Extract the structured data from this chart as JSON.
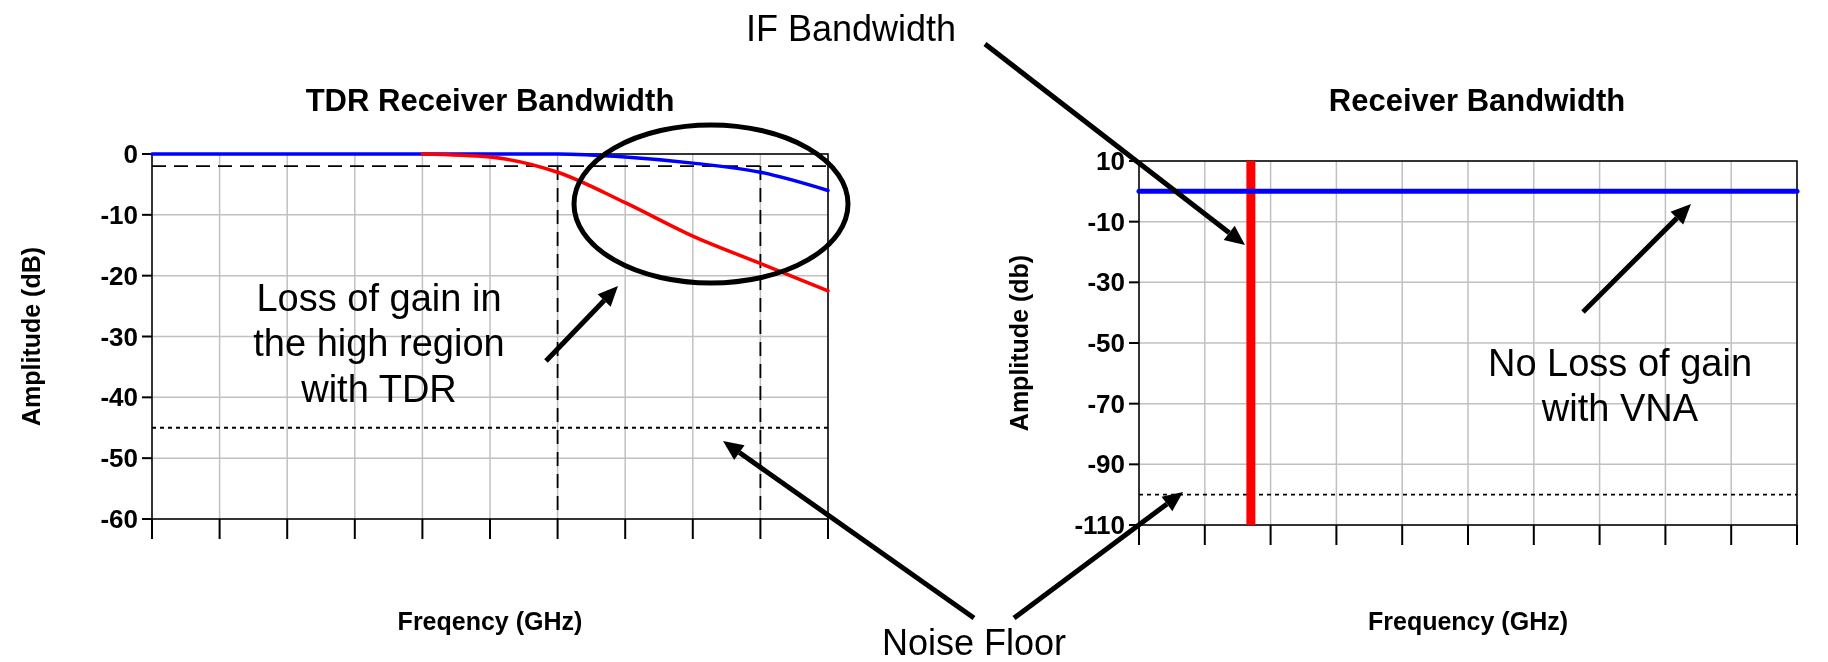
{
  "chart_data": [
    {
      "type": "line",
      "title": "TDR Receiver Bandwidth",
      "xlabel": "Freqency (GHz)",
      "ylabel": "Amplitude (dB)",
      "categories": [
        null,
        null,
        null,
        null,
        null,
        null,
        null,
        null,
        null,
        null,
        null
      ],
      "series": [
        {
          "color": "#0000ff",
          "values": [
            0,
            0,
            0,
            0,
            0,
            0,
            0,
            -0.5,
            -1.5,
            -3,
            -6
          ]
        },
        {
          "color": "#ff0000",
          "values": [
            null,
            null,
            null,
            null,
            0,
            -0.5,
            -3,
            -8,
            -13.5,
            -18,
            -22.5
          ]
        }
      ],
      "ylim": [
        -60,
        0
      ],
      "yticks": [
        0,
        -10,
        -20,
        -30,
        -40,
        -50,
        -60
      ],
      "grid": true,
      "tick_labels": "y",
      "ref_lines": [
        {
          "axis": "y",
          "value": -2,
          "line_style": "dashed",
          "color": "#000000"
        },
        {
          "axis": "y",
          "value": -45,
          "line_style": "dotted",
          "color": "#000000"
        }
      ],
      "annotations": [
        "Loss of gain in\nthe high region\nwith TDR",
        "Noise Floor"
      ]
    },
    {
      "type": "line",
      "title": "Receiver Bandwidth",
      "xlabel": "Frequency (GHz)",
      "ylabel": "Amplitude (db)",
      "categories": [
        null,
        null,
        null,
        null,
        null,
        null,
        null,
        null,
        null,
        null,
        null
      ],
      "series": [
        {
          "color": "#0000ff",
          "values": [
            0,
            0,
            0,
            0,
            0,
            0,
            0,
            0,
            0,
            0,
            0
          ]
        }
      ],
      "ylim": [
        -110,
        10
      ],
      "yticks": [
        10,
        -10,
        -30,
        -50,
        -70,
        -90,
        -110
      ],
      "grid": true,
      "tick_labels": "y",
      "ref_lines": [
        {
          "axis": "y",
          "value": -100,
          "line_style": "dotted",
          "color": "#000000"
        }
      ],
      "annotations": [
        "IF Bandwidth",
        "No Loss of gain\nwith VNA"
      ]
    }
  ]
}
